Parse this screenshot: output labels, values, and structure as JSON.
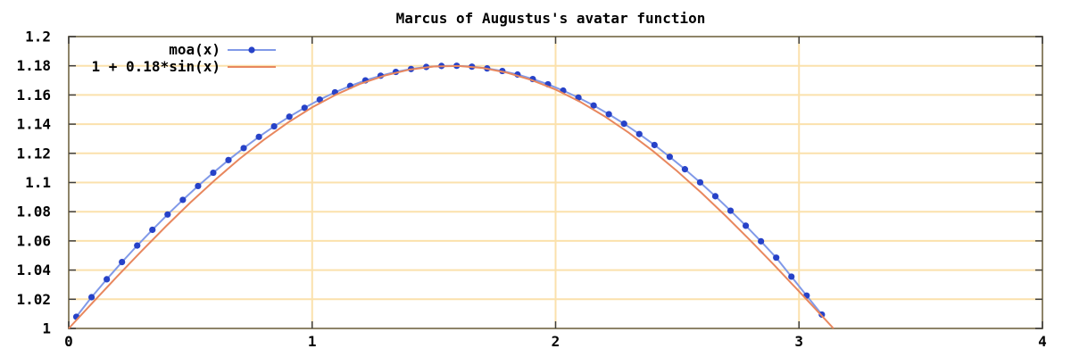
{
  "title": "Marcus of Augustus's avatar function",
  "colors": {
    "background": "#ffffff",
    "grid": "#fbe1ac",
    "border": "#8e8468",
    "tick": "#404040",
    "text": "#000000",
    "moa_point": "#2742c8",
    "moa_line": "#8099e8",
    "sine_line": "#e8875e"
  },
  "legend": [
    {
      "label": "moa(x)",
      "series": "moa",
      "marker": "line-point"
    },
    {
      "label": "1 + 0.18*sin(x)",
      "series": "sine",
      "marker": "line"
    }
  ],
  "axes": {
    "x": {
      "min": 0,
      "max": 4,
      "ticks": [
        0,
        1,
        2,
        3,
        4
      ],
      "tick_labels": [
        "0",
        "1",
        "2",
        "3",
        "4"
      ]
    },
    "y": {
      "min": 1,
      "max": 1.2,
      "ticks": [
        1,
        1.02,
        1.04,
        1.06,
        1.08,
        1.1,
        1.12,
        1.14,
        1.16,
        1.18,
        1.2
      ],
      "tick_labels": [
        "1",
        "1.02",
        "1.04",
        "1.06",
        "1.08",
        "1.1",
        "1.12",
        "1.14",
        "1.16",
        "1.18",
        "1.2"
      ]
    }
  },
  "chart_data": {
    "type": "line",
    "title": "Marcus of Augustus's avatar function",
    "xlabel": "",
    "ylabel": "",
    "xlim": [
      0,
      4
    ],
    "ylim": [
      1,
      1.2
    ],
    "grid": true,
    "legend_position": "inside-top-left",
    "series": [
      {
        "name": "moa(x)",
        "style": "linespoints",
        "color_line": "#8099e8",
        "color_point": "#2742c8",
        "x": [
          0.0313,
          0.0938,
          0.1563,
          0.2188,
          0.2813,
          0.3438,
          0.4063,
          0.4688,
          0.5313,
          0.5938,
          0.6563,
          0.7188,
          0.7813,
          0.8438,
          0.9063,
          0.9688,
          1.0313,
          1.0938,
          1.1563,
          1.2188,
          1.2813,
          1.3438,
          1.4063,
          1.4688,
          1.5313,
          1.5938,
          1.6563,
          1.7188,
          1.7813,
          1.8438,
          1.9063,
          1.9688,
          2.0313,
          2.0938,
          2.1563,
          2.2188,
          2.2813,
          2.3438,
          2.4063,
          2.4688,
          2.5313,
          2.5938,
          2.6563,
          2.7188,
          2.7813,
          2.8438,
          2.9063,
          2.9688,
          3.0313,
          3.0938
        ],
        "y": [
          1.008,
          1.0214,
          1.0337,
          1.0455,
          1.0568,
          1.0676,
          1.0781,
          1.0881,
          1.0976,
          1.1067,
          1.1154,
          1.1236,
          1.1313,
          1.1385,
          1.1451,
          1.1512,
          1.1568,
          1.1618,
          1.1662,
          1.17,
          1.1732,
          1.1758,
          1.1778,
          1.1792,
          1.1799,
          1.18,
          1.1794,
          1.1782,
          1.1764,
          1.174,
          1.1709,
          1.1673,
          1.163,
          1.1582,
          1.1528,
          1.1468,
          1.1403,
          1.1332,
          1.1257,
          1.1176,
          1.1091,
          1.1001,
          1.0906,
          1.0807,
          1.0704,
          1.0597,
          1.0485,
          1.0355,
          1.0225,
          1.0095
        ]
      },
      {
        "name": "1 + 0.18*sin(x)",
        "style": "line",
        "color_line": "#e8875e",
        "x": [
          0,
          0.1,
          0.2,
          0.3,
          0.4,
          0.5,
          0.6,
          0.7,
          0.8,
          0.9,
          1.0,
          1.1,
          1.2,
          1.3,
          1.4,
          1.5,
          1.6,
          1.7,
          1.8,
          1.9,
          2.0,
          2.1,
          2.2,
          2.3,
          2.4,
          2.5,
          2.6,
          2.7,
          2.8,
          2.9,
          3.0,
          3.1,
          3.1416
        ],
        "y": [
          1.0,
          1.018,
          1.0358,
          1.0532,
          1.0701,
          1.0863,
          1.1016,
          1.116,
          1.1291,
          1.141,
          1.1515,
          1.1604,
          1.1678,
          1.1734,
          1.1774,
          1.1795,
          1.1799,
          1.1785,
          1.1753,
          1.1703,
          1.1637,
          1.1554,
          1.1455,
          1.1342,
          1.1216,
          1.1077,
          1.0928,
          1.0769,
          1.0603,
          1.0431,
          1.0254,
          1.0075,
          1.0
        ]
      }
    ]
  }
}
